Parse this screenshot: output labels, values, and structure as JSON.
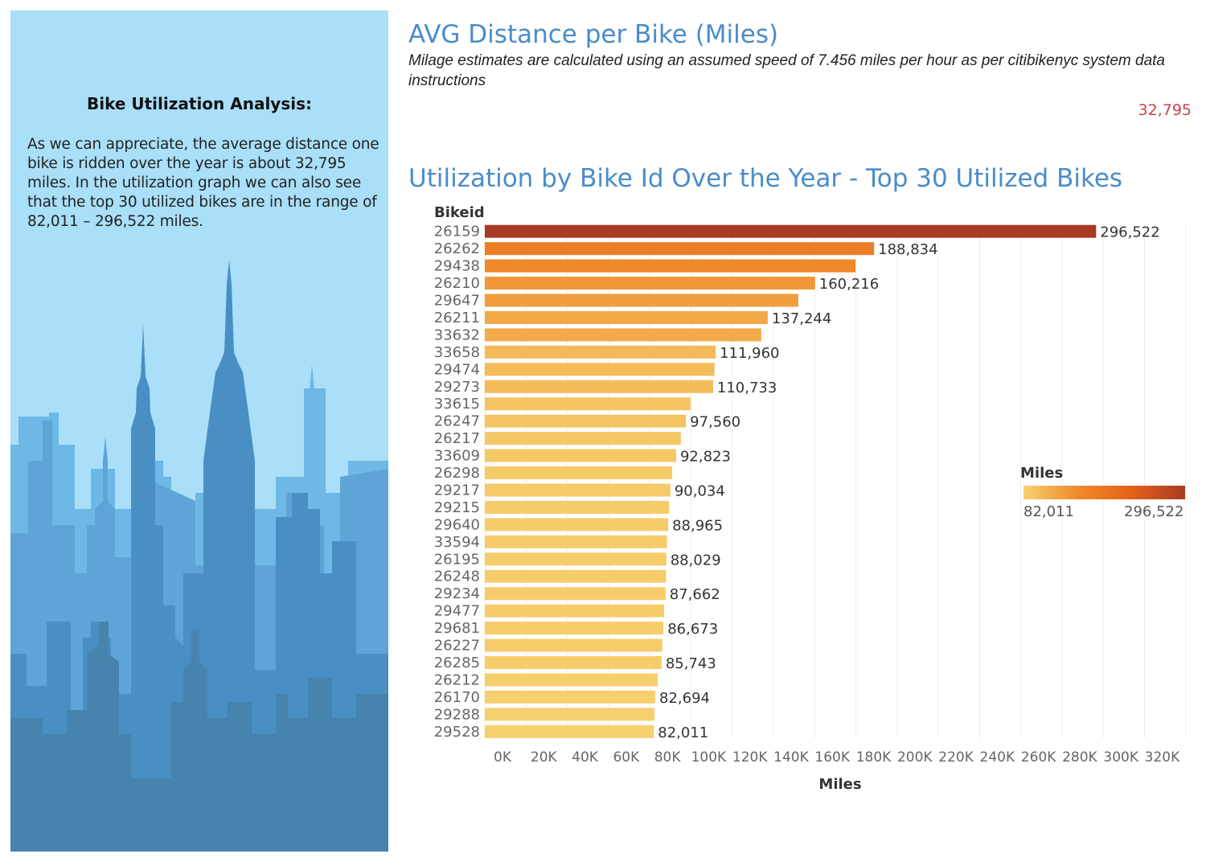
{
  "panel": {
    "heading": "Bike Utilization Analysis:",
    "body": "As we can appreciate, the average distance one bike is ridden over the year is about 32,795 miles. In the utilization graph we can also see that the top 30 utilized bikes are in the range of 82,011 – 296,522 miles."
  },
  "kpi": {
    "title": "AVG Distance per Bike (Miles)",
    "note": "Milage estimates are calculated using an assumed speed of 7.456 miles per hour as per citibikenyc system data instructions",
    "value": "32,795"
  },
  "chart_data": {
    "type": "bar",
    "orientation": "horizontal",
    "title": "Utilization by Bike Id Over the Year - Top 30 Utilized Bikes",
    "ylabel": "Bikeid",
    "xlabel": "Miles",
    "xlim": [
      0,
      340000
    ],
    "x_ticks": [
      "0K",
      "20K",
      "40K",
      "60K",
      "80K",
      "100K",
      "120K",
      "140K",
      "160K",
      "180K",
      "200K",
      "220K",
      "240K",
      "260K",
      "280K",
      "300K",
      "320K"
    ],
    "x_tick_values": [
      0,
      20000,
      40000,
      60000,
      80000,
      100000,
      120000,
      140000,
      160000,
      180000,
      200000,
      220000,
      240000,
      260000,
      280000,
      300000,
      320000
    ],
    "grid": "vertical",
    "categories": [
      "26159",
      "26262",
      "29438",
      "26210",
      "29647",
      "26211",
      "33632",
      "33658",
      "29474",
      "29273",
      "33615",
      "26247",
      "26217",
      "33609",
      "26298",
      "29217",
      "29215",
      "29640",
      "33594",
      "26195",
      "26248",
      "29234",
      "29477",
      "29681",
      "26227",
      "26285",
      "26212",
      "26170",
      "29288",
      "29528"
    ],
    "values": [
      296522,
      188834,
      179800,
      160216,
      152100,
      137244,
      134100,
      111960,
      111400,
      110733,
      99800,
      97560,
      95100,
      92823,
      90900,
      90034,
      89400,
      88965,
      88400,
      88029,
      87900,
      87662,
      87000,
      86673,
      86100,
      85743,
      83900,
      82694,
      82300,
      82011
    ],
    "labels": [
      "296,522",
      "188,834",
      "",
      "160,216",
      "",
      "137,244",
      "",
      "111,960",
      "",
      "110,733",
      "",
      "97,560",
      "",
      "92,823",
      "",
      "90,034",
      "",
      "88,965",
      "",
      "88,029",
      "",
      "87,662",
      "",
      "86,673",
      "",
      "85,743",
      "",
      "82,694",
      "",
      "82,011"
    ],
    "legend": {
      "title": "Miles",
      "min_label": "82,011",
      "max_label": "296,522",
      "min": 82011,
      "max": 296522,
      "colors": [
        "#f6d06e",
        "#f08a2a",
        "#e56118",
        "#a93a24"
      ],
      "placement": "right"
    }
  }
}
